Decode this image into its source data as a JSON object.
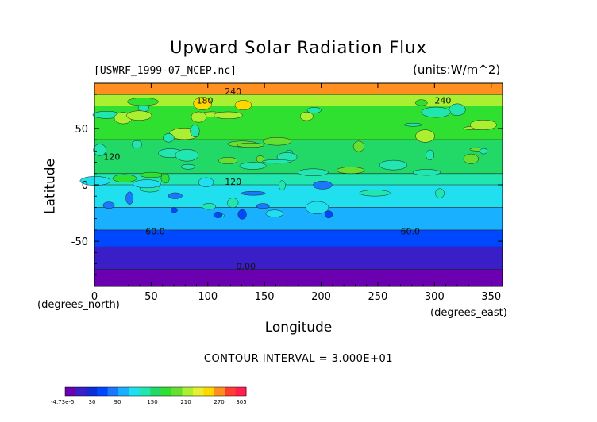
{
  "chart_data": {
    "type": "heatmap",
    "title": "Upward Solar Radiation Flux",
    "source_label": "[USWRF_1999-07_NCEP.nc]",
    "units_label": "(units:W/m^2)",
    "xlabel": "Longitude",
    "ylabel": "Latitude",
    "x_unit_label": "(degrees_east)",
    "y_unit_label": "(degrees_north)",
    "xlim": [
      0,
      360
    ],
    "ylim": [
      -90,
      90
    ],
    "x_ticks": [
      0,
      50,
      100,
      150,
      200,
      250,
      300,
      350
    ],
    "y_ticks": [
      -50,
      0,
      50
    ],
    "contour_interval_text": "CONTOUR INTERVAL = 3.000E+01",
    "contour_labels": [
      {
        "text": "240",
        "x": 115,
        "y": 80
      },
      {
        "text": "180",
        "x": 90,
        "y": 72
      },
      {
        "text": "240",
        "x": 300,
        "y": 72
      },
      {
        "text": "120",
        "x": 8,
        "y": 22
      },
      {
        "text": "120",
        "x": 115,
        "y": 0
      },
      {
        "text": "60.0",
        "x": 45,
        "y": -44
      },
      {
        "text": "60.0",
        "x": 270,
        "y": -44
      },
      {
        "text": "0.00",
        "x": 125,
        "y": -75
      }
    ],
    "latitude_bands": [
      {
        "lat_min": 80,
        "lat_max": 90,
        "value": 255
      },
      {
        "lat_min": 70,
        "lat_max": 80,
        "value": 200
      },
      {
        "lat_min": 40,
        "lat_max": 70,
        "value": 165
      },
      {
        "lat_min": 10,
        "lat_max": 40,
        "value": 150
      },
      {
        "lat_min": 0,
        "lat_max": 10,
        "value": 135
      },
      {
        "lat_min": -20,
        "lat_max": 0,
        "value": 100
      },
      {
        "lat_min": -40,
        "lat_max": -20,
        "value": 80
      },
      {
        "lat_min": -55,
        "lat_max": -40,
        "value": 50
      },
      {
        "lat_min": -75,
        "lat_max": -55,
        "value": 15
      },
      {
        "lat_min": -90,
        "lat_max": -75,
        "value": -10
      }
    ],
    "colorbar": {
      "min_label": "-4.73e-5",
      "labels": [
        "30",
        "90",
        "150",
        "210",
        "270",
        "305"
      ],
      "colors": [
        "#6a00b0",
        "#3a1ec8",
        "#0a2ed8",
        "#0048ff",
        "#1a78ff",
        "#18b0ff",
        "#20e0f0",
        "#22e6b0",
        "#22d866",
        "#30e030",
        "#66e030",
        "#aaf030",
        "#e6f030",
        "#ffd800",
        "#ff9020",
        "#ff4030",
        "#ff2050"
      ]
    }
  },
  "colors": {
    "background": "#ffffff"
  }
}
